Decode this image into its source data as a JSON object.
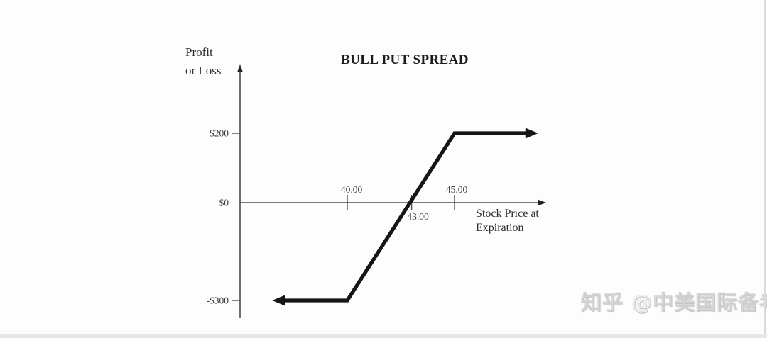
{
  "window": {
    "background": "#fdfdfd",
    "right_border_color": "#d9d9df",
    "bottom_band_color": "#e7e7e7"
  },
  "chart": {
    "title": "BULL PUT SPREAD",
    "y_axis_title": [
      "Profit",
      "or Loss"
    ],
    "x_axis_title": [
      "Stock Price at",
      "Expiration"
    ]
  },
  "watermark": {
    "text": "知乎 @中美国际备考"
  },
  "chart_data": {
    "type": "line",
    "title": "BULL PUT SPREAD",
    "xlabel": "Stock Price at Expiration",
    "ylabel": "Profit or Loss",
    "grid": false,
    "legend": false,
    "ylim": [
      -300,
      200
    ],
    "axis_color": "#4c4c4c",
    "x_ticks": [
      {
        "value": 40,
        "label": "40.00",
        "label_side": "above",
        "label_dx": 6
      },
      {
        "value": 43,
        "label": "43.00",
        "label_side": "below",
        "label_dx": 9
      },
      {
        "value": 45,
        "label": "45.00",
        "label_side": "above",
        "label_dx": 3
      }
    ],
    "y_ticks": [
      {
        "value": 200,
        "label": "$200"
      },
      {
        "value": 0,
        "label": "$0"
      },
      {
        "value": -300,
        "label": "-$300"
      }
    ],
    "series": [
      {
        "name": "bull-put-spread-payoff",
        "color": "#151515",
        "arrow_start": true,
        "arrow_end": true,
        "points": [
          {
            "x": 36.5,
            "y": -300
          },
          {
            "x": 40.0,
            "y": -300
          },
          {
            "x": 45.0,
            "y": 200
          },
          {
            "x": 48.9,
            "y": 200
          }
        ]
      }
    ],
    "key_values": {
      "lower_strike": 40.0,
      "upper_strike": 45.0,
      "breakeven": 43.0,
      "max_profit": 200,
      "max_loss": -300
    }
  }
}
